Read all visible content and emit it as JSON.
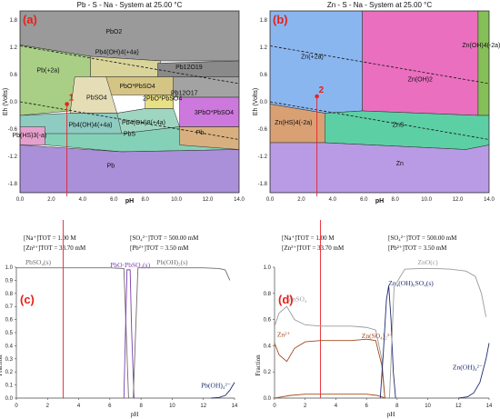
{
  "colors": {
    "red_marker": "#e8212b",
    "pb_line": "#6f6f6f",
    "purple_line": "#7d3cb0",
    "navy_line": "#1f2c6e",
    "grey_line": "#9a9a9a",
    "brown_line": "#a34a1c"
  },
  "chart_data": [
    {
      "type": "area",
      "panel": "(a)",
      "title": "Pb - S - Na - System at 25.00 °C",
      "xlabel": "pH",
      "ylabel": "Eh (Volts)",
      "xlim": [
        0,
        14
      ],
      "ylim": [
        -2.0,
        2.0
      ],
      "xticks": [
        "0.0",
        "2.0",
        "4.0",
        "6.0",
        "8.0",
        "10.0",
        "12.0",
        "14.0"
      ],
      "yticks": [
        "1.8",
        "1.2",
        "0.6",
        "0.0",
        "-0.6",
        "-1.2",
        "-1.8"
      ],
      "marker_label": "1",
      "marker": {
        "pH": 3.0,
        "Eh": -0.05
      },
      "regions": [
        {
          "label": "PbO2",
          "color": "#9a9a9a",
          "at": [
            6.0,
            1.5
          ],
          "polygon": [
            [
              0,
              2
            ],
            [
              14,
              2
            ],
            [
              14,
              0.9
            ],
            [
              9,
              0.9
            ],
            [
              4.5,
              1.0
            ],
            [
              0,
              1.25
            ]
          ]
        },
        {
          "label": "Pb(+2a)",
          "color": "#a9cf86",
          "at": [
            1.8,
            0.65
          ],
          "polygon": [
            [
              0,
              1.25
            ],
            [
              4.5,
              1.0
            ],
            [
              4.5,
              0.55
            ],
            [
              3.5,
              0.1
            ],
            [
              3.2,
              -0.2
            ],
            [
              0,
              -0.3
            ]
          ]
        },
        {
          "label": "Pb4(OH)4(+4a)",
          "color": "#d9d49a",
          "at": [
            6.2,
            1.05
          ],
          "polygon": [
            [
              4.5,
              1.0
            ],
            [
              9,
              0.9
            ],
            [
              8.8,
              0.55
            ],
            [
              4.5,
              0.55
            ]
          ]
        },
        {
          "label": "Pb12O19",
          "color": "#8a8a8a",
          "at": [
            10.8,
            0.72
          ],
          "polygon": [
            [
              8.8,
              0.85
            ],
            [
              14,
              0.9
            ],
            [
              14,
              0.55
            ],
            [
              8.8,
              0.55
            ]
          ]
        },
        {
          "label": "PbO*PbSO4",
          "color": "#d5c585",
          "at": [
            7.5,
            0.3
          ],
          "polygon": [
            [
              5.5,
              0.55
            ],
            [
              9.8,
              0.55
            ],
            [
              9.8,
              0.15
            ],
            [
              5.5,
              0.15
            ]
          ]
        },
        {
          "label": "PbSO4",
          "color": "#e4ddb6",
          "at": [
            4.9,
            0.05
          ],
          "polygon": [
            [
              3.5,
              0.55
            ],
            [
              5.5,
              0.55
            ],
            [
              6.2,
              -0.25
            ],
            [
              3.2,
              -0.25
            ]
          ]
        },
        {
          "label": "Pb12O17",
          "color": "#a3a3a3",
          "at": [
            10.5,
            0.15
          ],
          "polygon": [
            [
              9.8,
              0.55
            ],
            [
              14,
              0.55
            ],
            [
              14,
              0.1
            ],
            [
              9.8,
              0.1
            ]
          ]
        },
        {
          "label": "2PbO*PbSO4",
          "color": "#e8e085",
          "at": [
            9.1,
            0.03
          ],
          "polygon": [
            [
              8,
              0.15
            ],
            [
              9.8,
              0.15
            ],
            [
              9.8,
              -0.15
            ],
            [
              8,
              -0.15
            ]
          ]
        },
        {
          "label": "3PbO*PbSO4",
          "color": "#cd78dd",
          "at": [
            12.4,
            -0.28
          ],
          "polygon": [
            [
              10.2,
              0.1
            ],
            [
              14,
              0.1
            ],
            [
              14,
              -0.55
            ],
            [
              10.2,
              -0.55
            ]
          ]
        },
        {
          "label": "Pb4(OH)4(+4a)",
          "color": "#8ecbc1",
          "at": [
            4.5,
            -0.55
          ],
          "polygon": [
            [
              0,
              -0.3
            ],
            [
              3.2,
              -0.25
            ],
            [
              6.2,
              -0.25
            ],
            [
              8,
              -0.15
            ],
            [
              10.2,
              -0.55
            ],
            [
              14,
              -0.55
            ],
            [
              14,
              -1.05
            ],
            [
              6.5,
              -0.95
            ],
            [
              0,
              -0.7
            ]
          ]
        },
        {
          "label": "Pb4(OH)8(+4a)",
          "color": "#9fd6c2",
          "at": [
            7.9,
            -0.5
          ],
          "polygon": [
            [
              6.2,
              -0.25
            ],
            [
              8,
              -0.15
            ],
            [
              9.8,
              -0.15
            ],
            [
              10.2,
              -0.55
            ],
            [
              6.5,
              -0.7
            ]
          ]
        },
        {
          "label": "PbS",
          "color": "#85d1b8",
          "at": [
            7.0,
            -0.75
          ],
          "polygon": [
            [
              0,
              -0.7
            ],
            [
              6.5,
              -0.7
            ],
            [
              10.2,
              -0.55
            ],
            [
              14,
              -0.55
            ],
            [
              14,
              -1.05
            ],
            [
              6.5,
              -1.1
            ],
            [
              0,
              -0.9
            ]
          ]
        },
        {
          "label": "Pb",
          "color": "#d8b07f",
          "at": [
            11.5,
            -0.72
          ],
          "polygon": [
            [
              10.2,
              -0.55
            ],
            [
              14,
              -0.55
            ],
            [
              14,
              -1.05
            ],
            [
              10.2,
              -0.95
            ]
          ]
        },
        {
          "label": "Pb(HS)3(-a)",
          "color": "#e6a0cd",
          "at": [
            0.6,
            -0.78
          ],
          "polygon": [
            [
              0,
              -0.55
            ],
            [
              1.6,
              -0.55
            ],
            [
              1.6,
              -0.95
            ],
            [
              0,
              -0.95
            ]
          ]
        },
        {
          "label": "Pb",
          "color": "#aa8fd9",
          "at": [
            5.8,
            -1.45
          ],
          "polygon": [
            [
              0,
              -0.95
            ],
            [
              6.5,
              -1.1
            ],
            [
              14,
              -1.05
            ],
            [
              14,
              -2
            ],
            [
              0,
              -2
            ]
          ]
        }
      ],
      "water_lines": [
        {
          "x": [
            0,
            14
          ],
          "y": [
            1.23,
            0.4
          ]
        },
        {
          "x": [
            0,
            14
          ],
          "y": [
            0.0,
            -0.83
          ]
        }
      ]
    },
    {
      "type": "area",
      "panel": "(b)",
      "title": "Zn - S - Na - System at 25.00 °C",
      "xlabel": "pH",
      "ylabel": "Eh (Volts)",
      "xlim": [
        0,
        14
      ],
      "ylim": [
        -2.0,
        2.0
      ],
      "xticks": [
        "0.0",
        "2.0",
        "4.0",
        "6.0",
        "8.0",
        "10.0",
        "12.0",
        "14.0"
      ],
      "yticks": [
        "1.8",
        "1.2",
        "0.6",
        "0.0",
        "-0.6",
        "-1.2",
        "-1.8"
      ],
      "marker_label": "2",
      "marker": {
        "pH": 3.0,
        "Eh": 0.12
      },
      "regions": [
        {
          "label": "Zn(+2a)",
          "color": "#8ab6f0",
          "at": [
            2.7,
            0.95
          ],
          "polygon": [
            [
              0,
              2
            ],
            [
              5.9,
              2
            ],
            [
              5.9,
              -0.2
            ],
            [
              3.5,
              -0.25
            ],
            [
              0,
              -0.05
            ]
          ]
        },
        {
          "label": "Zn(OH)2",
          "color": "#ea6fbf",
          "at": [
            9.6,
            0.45
          ],
          "polygon": [
            [
              5.9,
              2
            ],
            [
              13.3,
              2
            ],
            [
              13.3,
              -0.3
            ],
            [
              5.9,
              -0.2
            ]
          ]
        },
        {
          "label": "Zn(OH)4(-2a)",
          "color": "#86bf57",
          "at": [
            13.5,
            1.2
          ],
          "polygon": [
            [
              13.3,
              2
            ],
            [
              14,
              2
            ],
            [
              14,
              -0.3
            ],
            [
              13.3,
              -0.3
            ]
          ]
        },
        {
          "label": "Zn(HS)4(-2a)",
          "color": "#d9a074",
          "at": [
            1.5,
            -0.5
          ],
          "polygon": [
            [
              0,
              -0.05
            ],
            [
              3.5,
              -0.25
            ],
            [
              3.5,
              -0.9
            ],
            [
              0,
              -0.9
            ]
          ]
        },
        {
          "label": "ZnS",
          "color": "#5dcfa5",
          "at": [
            8.2,
            -0.55
          ],
          "polygon": [
            [
              3.5,
              -0.25
            ],
            [
              5.9,
              -0.2
            ],
            [
              13.3,
              -0.3
            ],
            [
              14,
              -0.3
            ],
            [
              14,
              -0.95
            ],
            [
              12.5,
              -1.05
            ],
            [
              3.5,
              -0.9
            ]
          ]
        },
        {
          "label": "Zn",
          "color": "#b89be4",
          "at": [
            8.3,
            -1.4
          ],
          "polygon": [
            [
              0,
              -0.9
            ],
            [
              3.5,
              -0.9
            ],
            [
              12.5,
              -1.05
            ],
            [
              14,
              -0.95
            ],
            [
              14,
              -2
            ],
            [
              0,
              -2
            ]
          ]
        }
      ],
      "water_lines": [
        {
          "x": [
            0,
            14
          ],
          "y": [
            1.23,
            0.4
          ]
        },
        {
          "x": [
            0,
            14
          ],
          "y": [
            0.0,
            -0.83
          ]
        }
      ]
    },
    {
      "type": "line",
      "panel": "(c)",
      "xlabel": "pH",
      "ylabel": "Fraction",
      "xlim": [
        0,
        14
      ],
      "ylim": [
        0,
        1
      ],
      "xticks": [
        "0",
        "2",
        "4",
        "6",
        "8",
        "10",
        "12",
        "14"
      ],
      "yticks": [
        "0.0",
        "0.1",
        "0.2",
        "0.3",
        "0.4",
        "0.5",
        "0.6",
        "0.7",
        "0.8",
        "0.9",
        "1.0"
      ],
      "marker_pH": 3.0,
      "conditions_left": [
        "[Na⁺]TOT =  1.00 M",
        "[Zn²⁺]TOT =  33.70 mM"
      ],
      "conditions_right": [
        "[SO₄²⁻]TOT =  500.00 mM",
        "[Pb²⁺]TOT =  3.50 mM"
      ],
      "series": [
        {
          "name": "PbSO₄(s)",
          "color": "#6f6f6f",
          "label_at": [
            1.4,
            1.02
          ],
          "x": [
            0,
            1,
            2,
            3,
            4,
            5,
            6,
            6.9,
            7.05,
            7.2
          ],
          "y": [
            0.995,
            0.995,
            0.995,
            0.995,
            0.995,
            0.995,
            0.995,
            0.99,
            0.5,
            0.0
          ]
        },
        {
          "name": "PbO·PbSO₄(s)",
          "color": "#7d3cb0",
          "label_at": [
            7.3,
            1.0
          ],
          "x": [
            6.9,
            7.0,
            7.1,
            7.2,
            7.3,
            7.4,
            7.55
          ],
          "y": [
            0,
            0.5,
            0.98,
            0.98,
            0.98,
            0.5,
            0
          ]
        },
        {
          "name": "Pb(OH)₂(s)",
          "color": "#6f6f6f",
          "label_at": [
            10.0,
            1.02
          ],
          "x": [
            7.5,
            7.65,
            7.8,
            9,
            10,
            11,
            12,
            13,
            13.4,
            13.7
          ],
          "y": [
            0,
            0.5,
            0.995,
            0.995,
            0.995,
            0.995,
            0.995,
            0.99,
            0.98,
            0.9
          ]
        },
        {
          "name": "Pb(OH)₄²⁻",
          "color": "#1f2c6e",
          "label_at": [
            12.8,
            0.08
          ],
          "x": [
            12.5,
            13.0,
            13.4,
            13.7,
            14.0
          ],
          "y": [
            0.0,
            0.005,
            0.02,
            0.06,
            0.12
          ]
        }
      ]
    },
    {
      "type": "line",
      "panel": "(d)",
      "xlabel": "pH",
      "ylabel": "Fraction",
      "xlim": [
        0,
        14
      ],
      "ylim": [
        0,
        1
      ],
      "xticks": [
        "0",
        "2",
        "4",
        "6",
        "8",
        "10",
        "12",
        "14"
      ],
      "yticks": [
        "0.0",
        "0.2",
        "0.4",
        "0.6",
        "0.8",
        "1.0"
      ],
      "marker_pH": 3.0,
      "conditions_left": [
        "[Na⁺]TOT =  1.00 M",
        "[Zn²⁺]TOT =  33.70 mM"
      ],
      "conditions_right": [
        "[SO₄²⁻]TOT =  500.00 mM",
        "[Pb²⁺]TOT =  3.50 mM"
      ],
      "series": [
        {
          "name": "ZnSO₄",
          "color": "#9a9a9a",
          "label_at": [
            1.5,
            0.74
          ],
          "x": [
            0,
            0.3,
            0.8,
            1.3,
            2,
            3,
            4,
            5,
            6,
            6.6,
            7.0,
            7.2
          ],
          "y": [
            0.55,
            0.65,
            0.7,
            0.6,
            0.56,
            0.55,
            0.55,
            0.55,
            0.54,
            0.52,
            0.3,
            0.0
          ]
        },
        {
          "name": "Zn²⁺",
          "color": "#a34a1c",
          "label_at": [
            0.6,
            0.47
          ],
          "x": [
            0,
            0.3,
            0.8,
            1.3,
            2,
            3,
            4,
            5,
            6,
            6.6,
            7.0,
            7.2
          ],
          "y": [
            0.42,
            0.33,
            0.28,
            0.38,
            0.43,
            0.44,
            0.44,
            0.44,
            0.45,
            0.44,
            0.25,
            0.0
          ]
        },
        {
          "name": "Zn(SO₄)₂²⁻",
          "color": "#a34a1c",
          "label_at": [
            6.7,
            0.46
          ],
          "x": [
            0,
            0.5,
            1,
            2,
            3,
            4,
            5,
            6,
            6.7,
            7.0,
            7.2
          ],
          "y": [
            0.0,
            0.01,
            0.02,
            0.03,
            0.03,
            0.03,
            0.03,
            0.03,
            0.02,
            0.01,
            0.0
          ]
        },
        {
          "name": "Zn₄(OH)₆SO₄(s)",
          "color": "#1f2c6e",
          "label_at": [
            8.9,
            0.86
          ],
          "x": [
            6.9,
            7.1,
            7.3,
            7.45,
            7.6,
            7.75,
            7.9
          ],
          "y": [
            0,
            0.35,
            0.75,
            0.86,
            0.6,
            0.2,
            0
          ]
        },
        {
          "name": "ZnO(c)",
          "color": "#9a9a9a",
          "label_at": [
            10.0,
            1.02
          ],
          "x": [
            7.5,
            7.8,
            8.5,
            9.5,
            10.5,
            11.5,
            12.5,
            13.1,
            13.5,
            13.8
          ],
          "y": [
            0,
            0.85,
            0.985,
            0.99,
            0.99,
            0.985,
            0.97,
            0.93,
            0.8,
            0.62
          ]
        },
        {
          "name": "Zn(OH)₄²⁻",
          "color": "#1f2c6e",
          "label_at": [
            12.6,
            0.22
          ],
          "x": [
            12.0,
            12.6,
            13.0,
            13.4,
            13.8,
            14.0
          ],
          "y": [
            0.0,
            0.01,
            0.04,
            0.12,
            0.3,
            0.42
          ]
        }
      ]
    }
  ]
}
